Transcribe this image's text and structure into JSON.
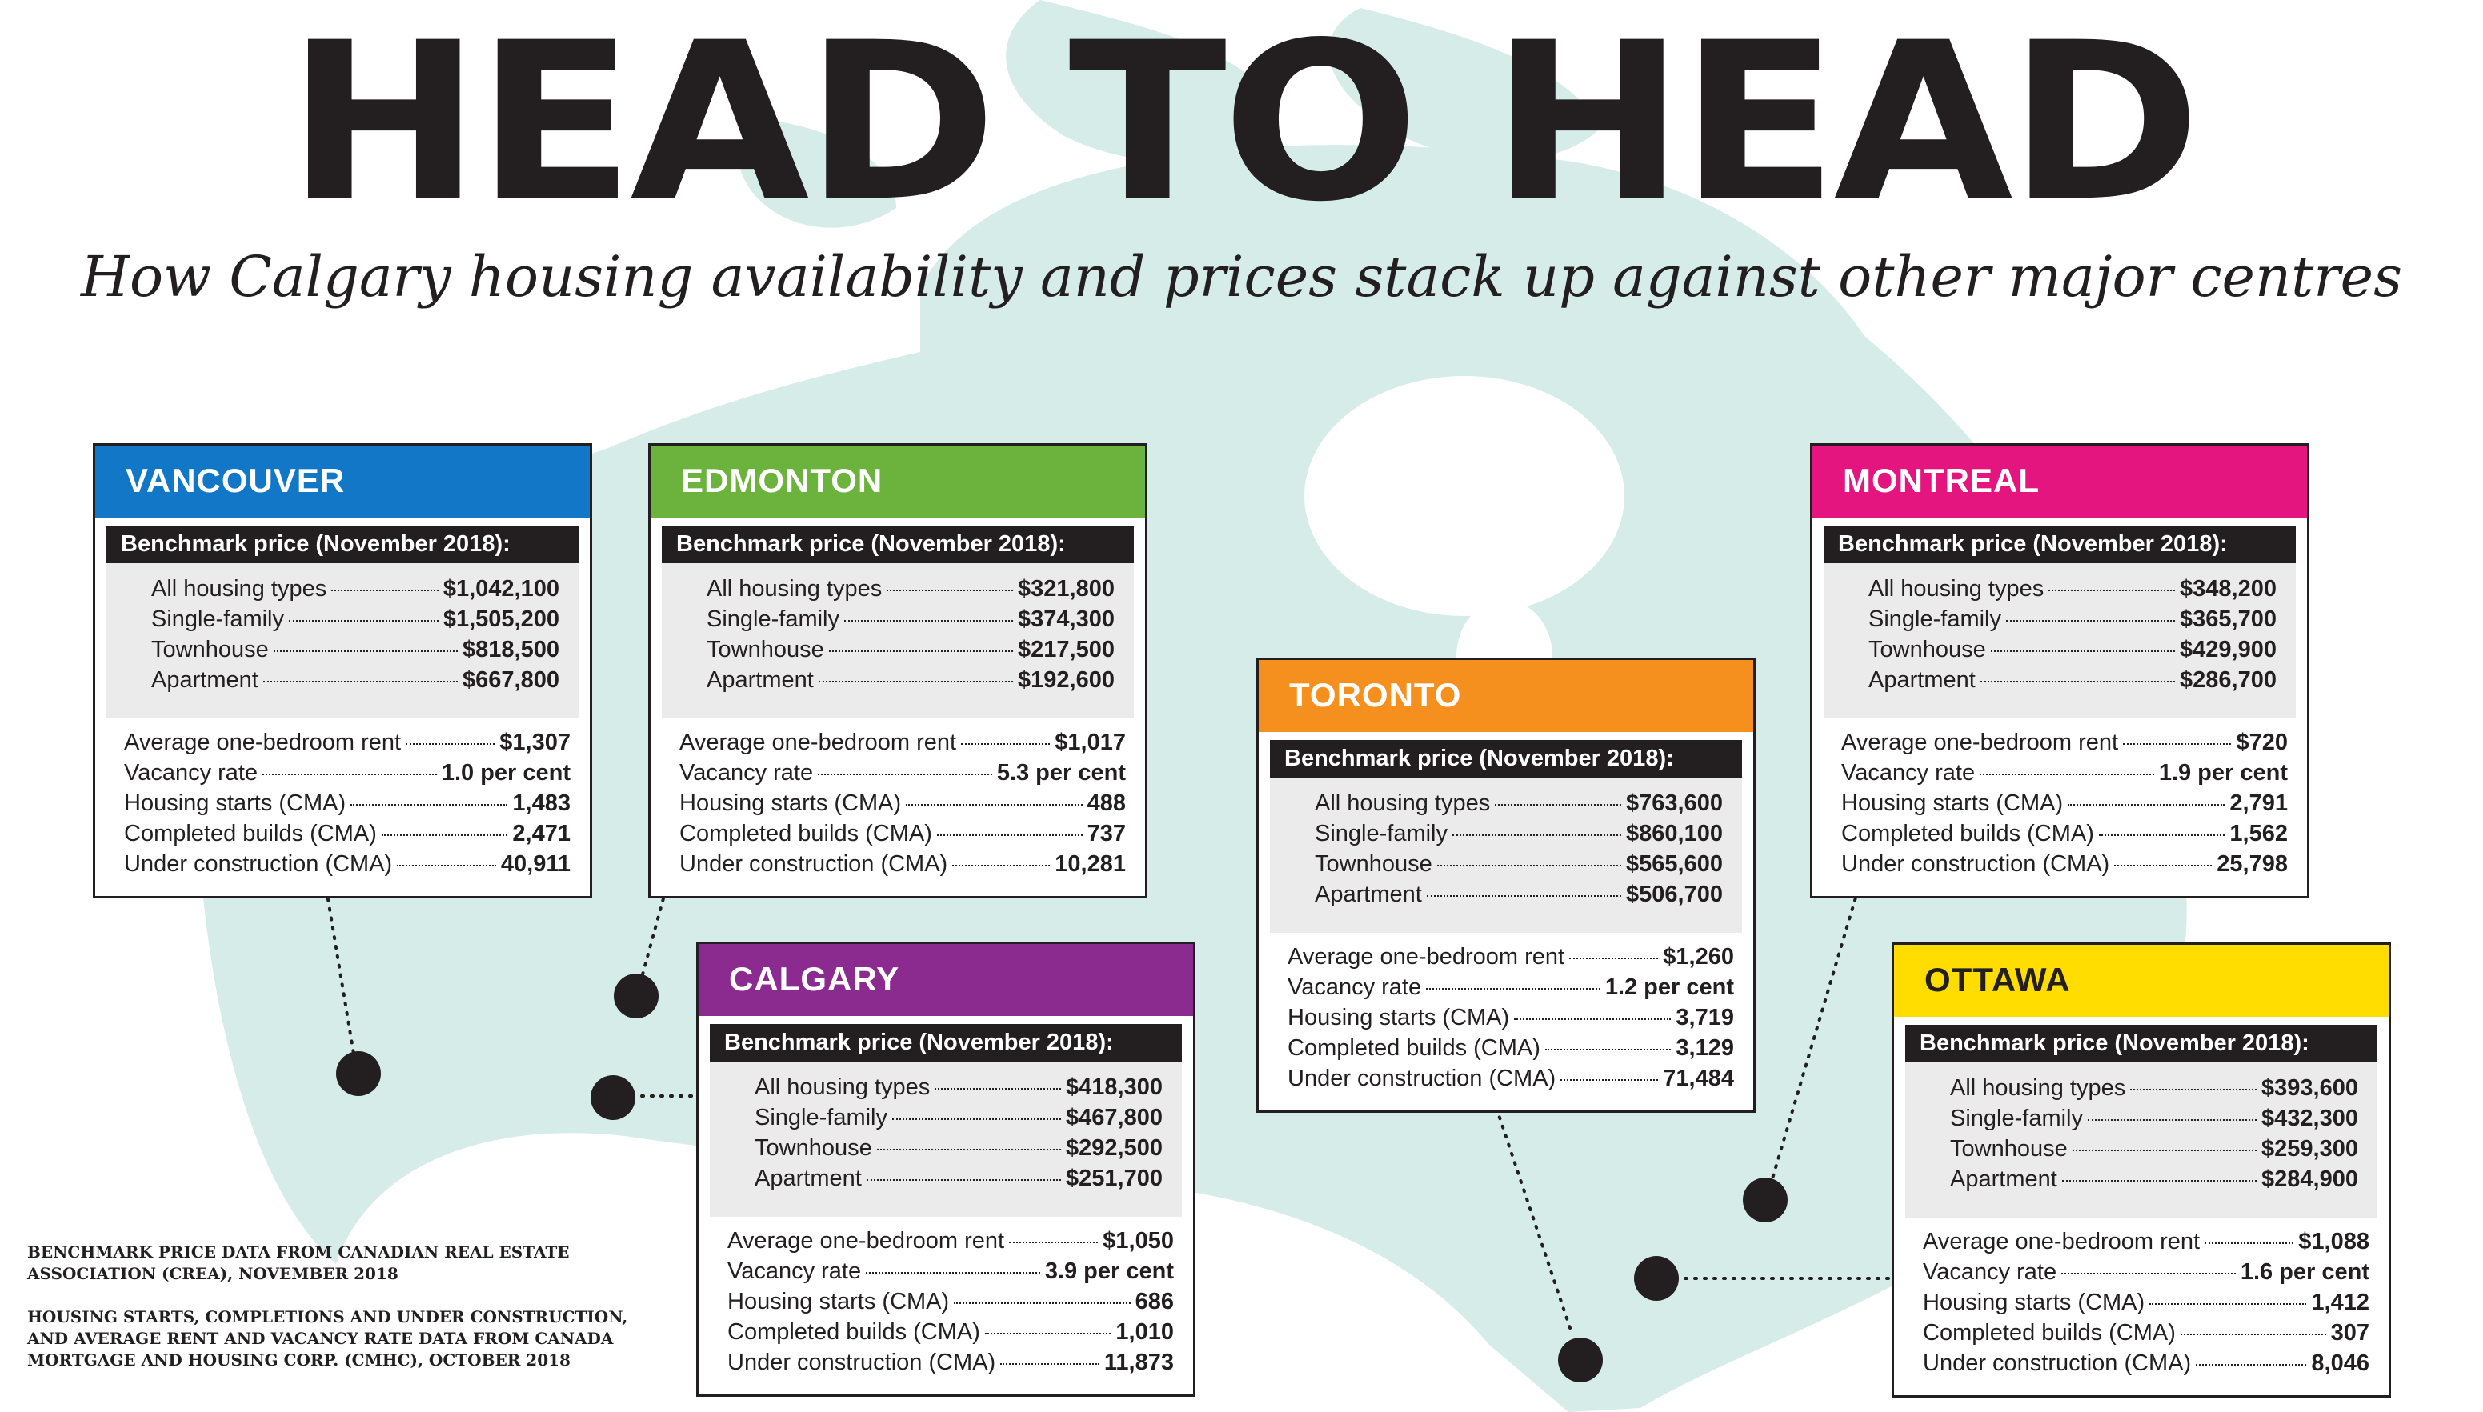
{
  "title": "HEAD TO HEAD",
  "subtitle": "How Calgary housing availability and prices stack up against other major centres",
  "colors": {
    "vancouver": "#1277c6",
    "edmonton": "#6cb33e",
    "calgary": "#8b2b8f",
    "toronto": "#f5901e",
    "montreal": "#e5157f",
    "ottawa": "#ffdd00",
    "map": "#d6ece8",
    "text": "#231f20"
  },
  "cities": [
    {
      "name": "VANCOUVER",
      "benchmark_label": "Benchmark price (November 2018):",
      "prices": [
        {
          "label": "All housing types",
          "value": "$1,042,100"
        },
        {
          "label": "Single-family",
          "value": "$1,505,200"
        },
        {
          "label": "Townhouse",
          "value": "$818,500"
        },
        {
          "label": "Apartment",
          "value": "$667,800"
        }
      ],
      "stats": [
        {
          "label": "Average one-bedroom rent",
          "value": "$1,307"
        },
        {
          "label": "Vacancy rate",
          "value": "1.0 per cent"
        },
        {
          "label": "Housing starts (CMA)",
          "value": "1,483"
        },
        {
          "label": "Completed builds (CMA)",
          "value": "2,471"
        },
        {
          "label": "Under construction (CMA)",
          "value": "40,911"
        }
      ]
    },
    {
      "name": "EDMONTON",
      "benchmark_label": "Benchmark price (November 2018):",
      "prices": [
        {
          "label": "All housing types",
          "value": "$321,800"
        },
        {
          "label": "Single-family",
          "value": "$374,300"
        },
        {
          "label": "Townhouse",
          "value": "$217,500"
        },
        {
          "label": "Apartment",
          "value": "$192,600"
        }
      ],
      "stats": [
        {
          "label": "Average one-bedroom rent",
          "value": "$1,017"
        },
        {
          "label": "Vacancy rate",
          "value": "5.3 per cent"
        },
        {
          "label": "Housing starts (CMA)",
          "value": "488"
        },
        {
          "label": "Completed builds (CMA)",
          "value": "737"
        },
        {
          "label": "Under construction (CMA)",
          "value": "10,281"
        }
      ]
    },
    {
      "name": "CALGARY",
      "benchmark_label": "Benchmark price (November 2018):",
      "prices": [
        {
          "label": "All housing types",
          "value": "$418,300"
        },
        {
          "label": "Single-family",
          "value": "$467,800"
        },
        {
          "label": "Townhouse",
          "value": "$292,500"
        },
        {
          "label": "Apartment",
          "value": "$251,700"
        }
      ],
      "stats": [
        {
          "label": "Average one-bedroom rent",
          "value": "$1,050"
        },
        {
          "label": "Vacancy rate",
          "value": "3.9 per cent"
        },
        {
          "label": "Housing starts (CMA)",
          "value": "686"
        },
        {
          "label": "Completed builds (CMA)",
          "value": "1,010"
        },
        {
          "label": "Under construction (CMA)",
          "value": "11,873"
        }
      ]
    },
    {
      "name": "TORONTO",
      "benchmark_label": "Benchmark price (November 2018):",
      "prices": [
        {
          "label": "All housing types",
          "value": "$763,600"
        },
        {
          "label": "Single-family",
          "value": "$860,100"
        },
        {
          "label": "Townhouse",
          "value": "$565,600"
        },
        {
          "label": "Apartment",
          "value": "$506,700"
        }
      ],
      "stats": [
        {
          "label": "Average one-bedroom rent",
          "value": "$1,260"
        },
        {
          "label": "Vacancy rate",
          "value": "1.2 per cent"
        },
        {
          "label": "Housing starts (CMA)",
          "value": "3,719"
        },
        {
          "label": "Completed builds (CMA)",
          "value": "3,129"
        },
        {
          "label": "Under construction (CMA)",
          "value": "71,484"
        }
      ]
    },
    {
      "name": "MONTREAL",
      "benchmark_label": "Benchmark price (November 2018):",
      "prices": [
        {
          "label": "All housing types",
          "value": "$348,200"
        },
        {
          "label": "Single-family",
          "value": "$365,700"
        },
        {
          "label": "Townhouse",
          "value": "$429,900"
        },
        {
          "label": "Apartment",
          "value": "$286,700"
        }
      ],
      "stats": [
        {
          "label": "Average one-bedroom rent",
          "value": "$720"
        },
        {
          "label": "Vacancy rate",
          "value": "1.9 per cent"
        },
        {
          "label": "Housing starts (CMA)",
          "value": "2,791"
        },
        {
          "label": "Completed builds (CMA)",
          "value": "1,562"
        },
        {
          "label": "Under construction (CMA)",
          "value": "25,798"
        }
      ]
    },
    {
      "name": "OTTAWA",
      "benchmark_label": "Benchmark price (November 2018):",
      "prices": [
        {
          "label": "All housing types",
          "value": "$393,600"
        },
        {
          "label": "Single-family",
          "value": "$432,300"
        },
        {
          "label": "Townhouse",
          "value": "$259,300"
        },
        {
          "label": "Apartment",
          "value": "$284,900"
        }
      ],
      "stats": [
        {
          "label": "Average one-bedroom rent",
          "value": "$1,088"
        },
        {
          "label": "Vacancy rate",
          "value": "1.6 per cent"
        },
        {
          "label": "Housing starts (CMA)",
          "value": "1,412"
        },
        {
          "label": "Completed builds (CMA)",
          "value": "307"
        },
        {
          "label": "Under construction (CMA)",
          "value": "8,046"
        }
      ]
    }
  ],
  "sources": [
    "Benchmark price data from Canadian Real Estate Association (CREA), November 2018",
    "Housing starts, completions and under construction, and average rent and vacancy rate data from Canada Mortgage and Housing Corp. (CMHC), October 2018"
  ]
}
